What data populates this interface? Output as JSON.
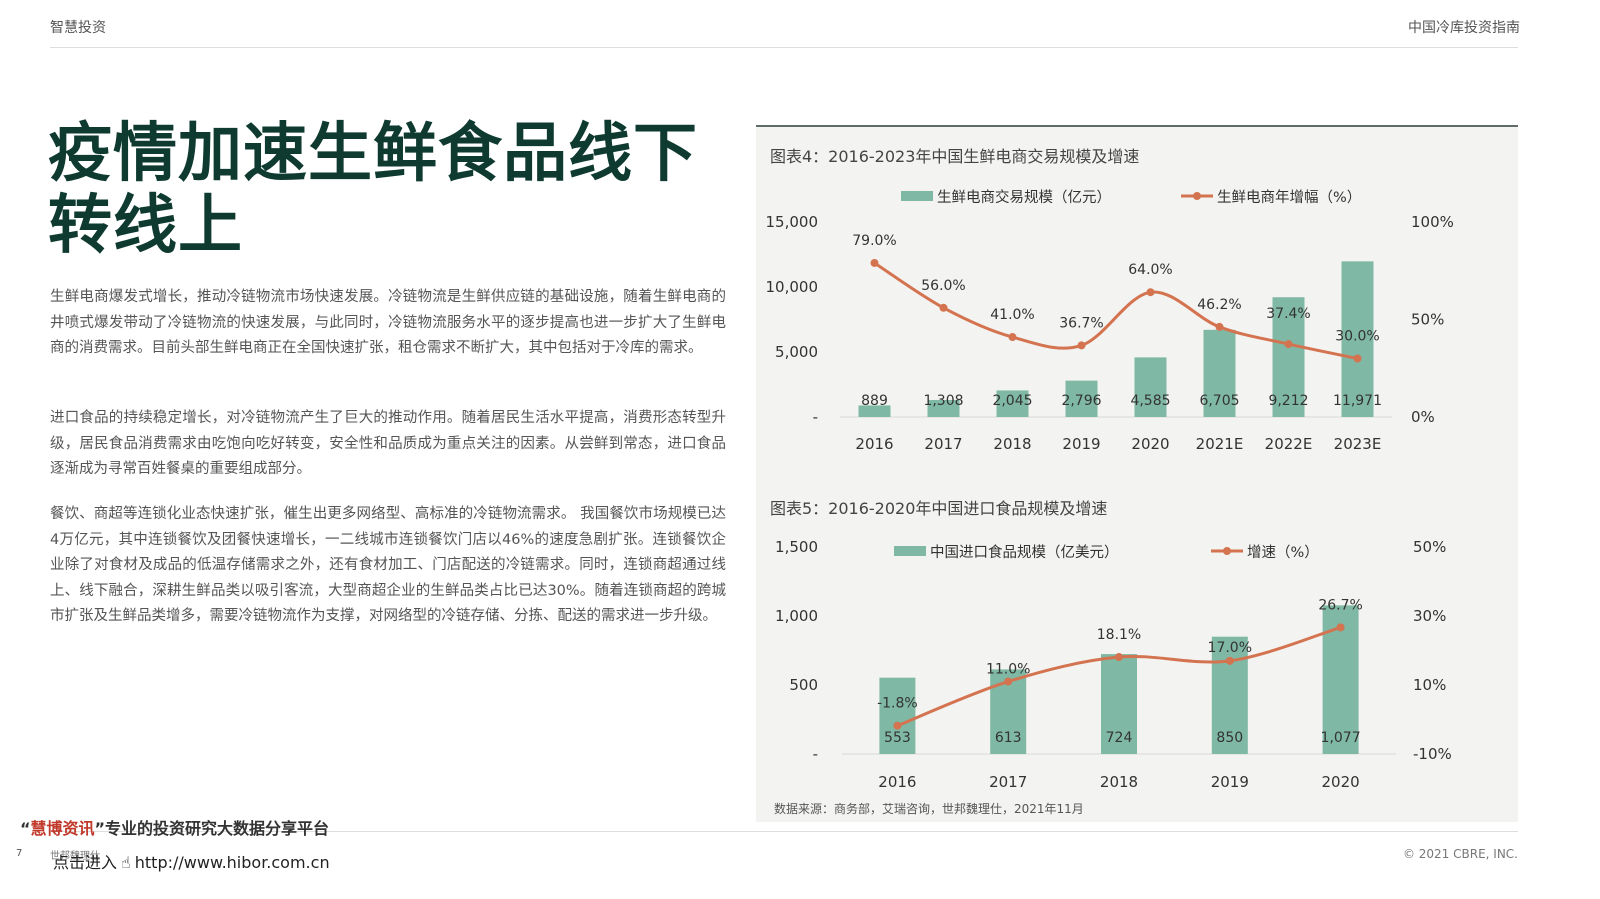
{
  "header": {
    "left": "智慧投资",
    "right": "中国冷库投资指南"
  },
  "title": "疫情加速生鲜食品线下转线上",
  "paragraphs": [
    "生鲜电商爆发式增长，推动冷链物流市场快速发展。冷链物流是生鲜供应链的基础设施，随着生鲜电商的井喷式爆发带动了冷链物流的快速发展，与此同时，冷链物流服务水平的逐步提高也进一步扩大了生鲜电商的消费需求。目前头部生鲜电商正在全国快速扩张，租仓需求不断扩大，其中包括对于冷库的需求。",
    "进口食品的持续稳定增长，对冷链物流产生了巨大的推动作用。随着居民生活水平提高，消费形态转型升级，居民食品消费需求由吃饱向吃好转变，安全性和品质成为重点关注的因素。从尝鲜到常态，进口食品逐渐成为寻常百姓餐桌的重要组成部分。",
    "餐饮、商超等连锁化业态快速扩张，催生出更多网络型、高标准的冷链物流需求。 我国餐饮市场规模已达4万亿元，其中连锁餐饮及团餐快速增长，一二线城市连锁餐饮门店以46%的速度急剧扩张。连锁餐饮企业除了对食材及成品的低温存储需求之外，还有食材加工、门店配送的冷链需求。同时，连锁商超通过线上、线下融合，深耕生鲜品类以吸引客流，大型商超企业的生鲜品类占比已达30%。随着连锁商超的跨城市扩张及生鲜品类增多，需要冷链物流作为支撑，对网络型的冷链存储、分拣、配送的需求进一步升级。"
  ],
  "chart_data": [
    {
      "type": "bar",
      "title": "图表4：2016-2023年中国生鲜电商交易规模及增速",
      "categories": [
        "2016",
        "2017",
        "2018",
        "2019",
        "2020",
        "2021E",
        "2022E",
        "2023E"
      ],
      "series": [
        {
          "name": "生鲜电商交易规模（亿元）",
          "type": "bar",
          "axis": "left",
          "values": [
            889,
            1308,
            2045,
            2796,
            4585,
            6705,
            9212,
            11971
          ],
          "labels": [
            "889",
            "1,308",
            "2,045",
            "2,796",
            "4,585",
            "6,705",
            "9,212",
            "11,971"
          ]
        },
        {
          "name": "生鲜电商年增幅（%）",
          "type": "line",
          "axis": "right",
          "values": [
            79.0,
            56.0,
            41.0,
            36.7,
            64.0,
            46.2,
            37.4,
            30.0
          ],
          "labels": [
            "79.0%",
            "56.0%",
            "41.0%",
            "36.7%",
            "64.0%",
            "46.2%",
            "37.4%",
            "30.0%"
          ]
        }
      ],
      "ylim": [
        0,
        15000
      ],
      "y_ticks": [
        0,
        5000,
        10000,
        15000
      ],
      "y_tick_labels": [
        "-",
        "5,000",
        "10,000",
        "15,000"
      ],
      "y2lim": [
        0,
        100
      ],
      "y2_ticks": [
        0,
        50,
        100
      ],
      "y2_tick_labels": [
        "0%",
        "50%",
        "100%"
      ],
      "legend": "top-center",
      "grid": false
    },
    {
      "type": "bar",
      "title": "图表5：2016-2020年中国进口食品规模及增速",
      "categories": [
        "2016",
        "2017",
        "2018",
        "2019",
        "2020"
      ],
      "series": [
        {
          "name": "中国进口食品规模（亿美元）",
          "type": "bar",
          "axis": "left",
          "values": [
            553,
            613,
            724,
            850,
            1077
          ],
          "labels": [
            "553",
            "613",
            "724",
            "850",
            "1,077"
          ]
        },
        {
          "name": "增速（%）",
          "type": "line",
          "axis": "right",
          "values": [
            -1.8,
            11.0,
            18.1,
            17.0,
            26.7
          ],
          "labels": [
            "-1.8%",
            "11.0%",
            "18.1%",
            "17.0%",
            "26.7%"
          ]
        }
      ],
      "ylim": [
        0,
        1500
      ],
      "y_ticks": [
        0,
        500,
        1000,
        1500
      ],
      "y_tick_labels": [
        "-",
        "500",
        "1,000",
        "1,500"
      ],
      "y2lim": [
        -10,
        50
      ],
      "y2_ticks": [
        -10,
        10,
        30,
        50
      ],
      "y2_tick_labels": [
        "-10%",
        "10%",
        "30%",
        "50%"
      ],
      "legend": "top-center",
      "grid": false
    }
  ],
  "chart_source": "数据来源：商务部，艾瑞咨询，世邦魏理仕，2021年11月",
  "colors": {
    "bar": "#7fb8a4",
    "line": "#d4734f",
    "title": "#0e3a2f",
    "panel": "#f3f3f1"
  },
  "footer": {
    "page": "7",
    "brand": "世邦魏理仕",
    "copyright": "© 2021 CBRE, INC."
  },
  "watermark": {
    "quote_open": "“",
    "brand": "慧博资讯",
    "quote_close": "”",
    "slogan": "专业的投资研究大数据分享平台",
    "link_prefix": "点击进入",
    "hand_icon": "pointing-hand-icon",
    "url": "http://www.hibor.com.cn"
  }
}
